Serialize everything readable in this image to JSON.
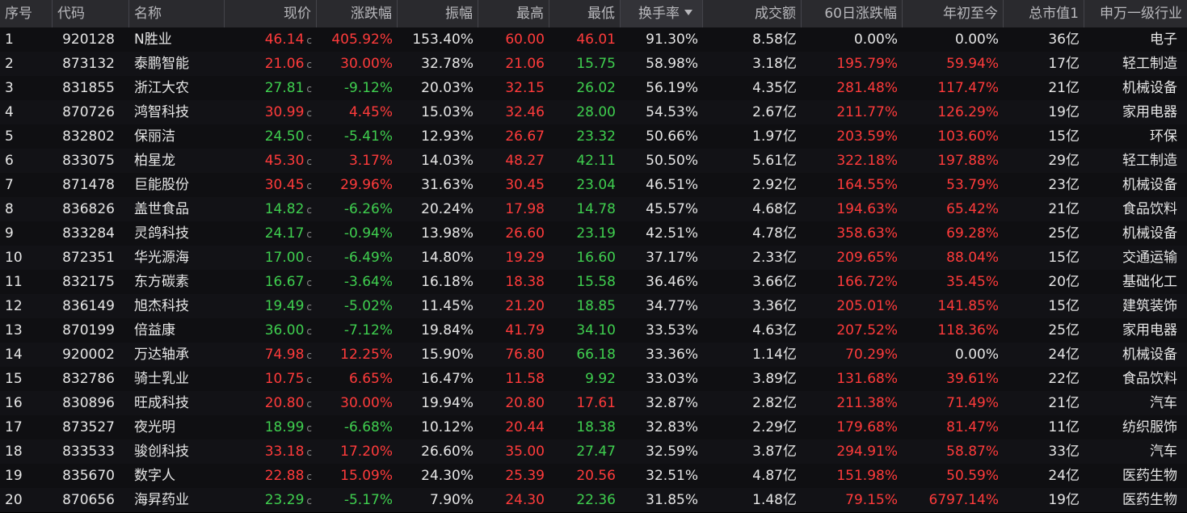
{
  "headers": {
    "idx": "序号",
    "code": "代码",
    "name": "名称",
    "price": "现价",
    "chg": "涨跌幅",
    "amp": "振幅",
    "high": "最高",
    "low": "最低",
    "turnover": "换手率",
    "volume": "成交额",
    "chg60": "60日涨跌幅",
    "ytd": "年初至今",
    "mktcap": "总市值1",
    "industry": "申万一级行业"
  },
  "sort_column": "turnover",
  "colors": {
    "up": "#ff3b3b",
    "down": "#3fcf4f",
    "flat": "#e6e6e6"
  },
  "price_flag": "c",
  "rows": [
    {
      "idx": "1",
      "code": "920128",
      "name": "N胜业",
      "price": "46.14",
      "chg": "405.92%",
      "amp": "153.40%",
      "high": "60.00",
      "low": "46.01",
      "turnover": "91.30%",
      "volume": "8.58亿",
      "chg60": "0.00%",
      "ytd": "0.00%",
      "mktcap": "36亿",
      "industry": "电子",
      "d": {
        "price": "up",
        "chg": "up",
        "high": "up",
        "low": "up",
        "chg60": "flat",
        "ytd": "flat"
      }
    },
    {
      "idx": "2",
      "code": "873132",
      "name": "泰鹏智能",
      "price": "21.06",
      "chg": "30.00%",
      "amp": "32.78%",
      "high": "21.06",
      "low": "15.75",
      "turnover": "58.98%",
      "volume": "3.18亿",
      "chg60": "195.79%",
      "ytd": "59.94%",
      "mktcap": "17亿",
      "industry": "轻工制造",
      "d": {
        "price": "up",
        "chg": "up",
        "high": "up",
        "low": "down",
        "chg60": "up",
        "ytd": "up"
      }
    },
    {
      "idx": "3",
      "code": "831855",
      "name": "浙江大农",
      "price": "27.81",
      "chg": "-9.12%",
      "amp": "20.03%",
      "high": "32.15",
      "low": "26.02",
      "turnover": "56.19%",
      "volume": "4.35亿",
      "chg60": "281.48%",
      "ytd": "117.47%",
      "mktcap": "21亿",
      "industry": "机械设备",
      "d": {
        "price": "down",
        "chg": "down",
        "high": "up",
        "low": "down",
        "chg60": "up",
        "ytd": "up"
      }
    },
    {
      "idx": "4",
      "code": "870726",
      "name": "鸿智科技",
      "price": "30.99",
      "chg": "4.45%",
      "amp": "15.03%",
      "high": "32.46",
      "low": "28.00",
      "turnover": "54.53%",
      "volume": "2.67亿",
      "chg60": "211.77%",
      "ytd": "126.29%",
      "mktcap": "19亿",
      "industry": "家用电器",
      "d": {
        "price": "up",
        "chg": "up",
        "high": "up",
        "low": "down",
        "chg60": "up",
        "ytd": "up"
      }
    },
    {
      "idx": "5",
      "code": "832802",
      "name": "保丽洁",
      "price": "24.50",
      "chg": "-5.41%",
      "amp": "12.93%",
      "high": "26.67",
      "low": "23.32",
      "turnover": "50.66%",
      "volume": "1.97亿",
      "chg60": "203.59%",
      "ytd": "103.60%",
      "mktcap": "15亿",
      "industry": "环保",
      "d": {
        "price": "down",
        "chg": "down",
        "high": "up",
        "low": "down",
        "chg60": "up",
        "ytd": "up"
      }
    },
    {
      "idx": "6",
      "code": "833075",
      "name": "柏星龙",
      "price": "45.30",
      "chg": "3.17%",
      "amp": "14.03%",
      "high": "48.27",
      "low": "42.11",
      "turnover": "50.50%",
      "volume": "5.61亿",
      "chg60": "322.18%",
      "ytd": "197.88%",
      "mktcap": "29亿",
      "industry": "轻工制造",
      "d": {
        "price": "up",
        "chg": "up",
        "high": "up",
        "low": "down",
        "chg60": "up",
        "ytd": "up"
      }
    },
    {
      "idx": "7",
      "code": "871478",
      "name": "巨能股份",
      "price": "30.45",
      "chg": "29.96%",
      "amp": "31.63%",
      "high": "30.45",
      "low": "23.04",
      "turnover": "46.51%",
      "volume": "2.92亿",
      "chg60": "164.55%",
      "ytd": "53.79%",
      "mktcap": "23亿",
      "industry": "机械设备",
      "d": {
        "price": "up",
        "chg": "up",
        "high": "up",
        "low": "down",
        "chg60": "up",
        "ytd": "up"
      }
    },
    {
      "idx": "8",
      "code": "836826",
      "name": "盖世食品",
      "price": "14.82",
      "chg": "-6.26%",
      "amp": "20.24%",
      "high": "17.98",
      "low": "14.78",
      "turnover": "45.57%",
      "volume": "4.68亿",
      "chg60": "194.63%",
      "ytd": "65.42%",
      "mktcap": "21亿",
      "industry": "食品饮料",
      "d": {
        "price": "down",
        "chg": "down",
        "high": "up",
        "low": "down",
        "chg60": "up",
        "ytd": "up"
      }
    },
    {
      "idx": "9",
      "code": "833284",
      "name": "灵鸽科技",
      "price": "24.17",
      "chg": "-0.94%",
      "amp": "13.98%",
      "high": "26.60",
      "low": "23.19",
      "turnover": "42.51%",
      "volume": "4.78亿",
      "chg60": "358.63%",
      "ytd": "69.28%",
      "mktcap": "25亿",
      "industry": "机械设备",
      "d": {
        "price": "down",
        "chg": "down",
        "high": "up",
        "low": "down",
        "chg60": "up",
        "ytd": "up"
      }
    },
    {
      "idx": "10",
      "code": "872351",
      "name": "华光源海",
      "price": "17.00",
      "chg": "-6.49%",
      "amp": "14.80%",
      "high": "19.29",
      "low": "16.60",
      "turnover": "37.17%",
      "volume": "2.33亿",
      "chg60": "209.65%",
      "ytd": "88.04%",
      "mktcap": "15亿",
      "industry": "交通运输",
      "d": {
        "price": "down",
        "chg": "down",
        "high": "up",
        "low": "down",
        "chg60": "up",
        "ytd": "up"
      }
    },
    {
      "idx": "11",
      "code": "832175",
      "name": "东方碳素",
      "price": "16.67",
      "chg": "-3.64%",
      "amp": "16.18%",
      "high": "18.38",
      "low": "15.58",
      "turnover": "36.46%",
      "volume": "3.66亿",
      "chg60": "166.72%",
      "ytd": "35.45%",
      "mktcap": "20亿",
      "industry": "基础化工",
      "d": {
        "price": "down",
        "chg": "down",
        "high": "up",
        "low": "down",
        "chg60": "up",
        "ytd": "up"
      }
    },
    {
      "idx": "12",
      "code": "836149",
      "name": "旭杰科技",
      "price": "19.49",
      "chg": "-5.02%",
      "amp": "11.45%",
      "high": "21.20",
      "low": "18.85",
      "turnover": "34.77%",
      "volume": "3.36亿",
      "chg60": "205.01%",
      "ytd": "141.85%",
      "mktcap": "15亿",
      "industry": "建筑装饰",
      "d": {
        "price": "down",
        "chg": "down",
        "high": "up",
        "low": "down",
        "chg60": "up",
        "ytd": "up"
      }
    },
    {
      "idx": "13",
      "code": "870199",
      "name": "倍益康",
      "price": "36.00",
      "chg": "-7.12%",
      "amp": "19.84%",
      "high": "41.79",
      "low": "34.10",
      "turnover": "33.53%",
      "volume": "4.63亿",
      "chg60": "207.52%",
      "ytd": "118.36%",
      "mktcap": "25亿",
      "industry": "家用电器",
      "d": {
        "price": "down",
        "chg": "down",
        "high": "up",
        "low": "down",
        "chg60": "up",
        "ytd": "up"
      }
    },
    {
      "idx": "14",
      "code": "920002",
      "name": "万达轴承",
      "price": "74.98",
      "chg": "12.25%",
      "amp": "15.90%",
      "high": "76.80",
      "low": "66.18",
      "turnover": "33.36%",
      "volume": "1.14亿",
      "chg60": "70.29%",
      "ytd": "0.00%",
      "mktcap": "24亿",
      "industry": "机械设备",
      "d": {
        "price": "up",
        "chg": "up",
        "high": "up",
        "low": "down",
        "chg60": "up",
        "ytd": "flat"
      }
    },
    {
      "idx": "15",
      "code": "832786",
      "name": "骑士乳业",
      "price": "10.75",
      "chg": "6.65%",
      "amp": "16.47%",
      "high": "11.58",
      "low": "9.92",
      "turnover": "33.03%",
      "volume": "3.89亿",
      "chg60": "131.68%",
      "ytd": "39.61%",
      "mktcap": "22亿",
      "industry": "食品饮料",
      "d": {
        "price": "up",
        "chg": "up",
        "high": "up",
        "low": "down",
        "chg60": "up",
        "ytd": "up"
      }
    },
    {
      "idx": "16",
      "code": "830896",
      "name": "旺成科技",
      "price": "20.80",
      "chg": "30.00%",
      "amp": "19.94%",
      "high": "20.80",
      "low": "17.61",
      "turnover": "32.87%",
      "volume": "2.82亿",
      "chg60": "211.38%",
      "ytd": "71.49%",
      "mktcap": "21亿",
      "industry": "汽车",
      "d": {
        "price": "up",
        "chg": "up",
        "high": "up",
        "low": "up",
        "chg60": "up",
        "ytd": "up"
      }
    },
    {
      "idx": "17",
      "code": "873527",
      "name": "夜光明",
      "price": "18.99",
      "chg": "-6.68%",
      "amp": "10.12%",
      "high": "20.44",
      "low": "18.38",
      "turnover": "32.83%",
      "volume": "2.29亿",
      "chg60": "179.68%",
      "ytd": "81.47%",
      "mktcap": "11亿",
      "industry": "纺织服饰",
      "d": {
        "price": "down",
        "chg": "down",
        "high": "up",
        "low": "down",
        "chg60": "up",
        "ytd": "up"
      }
    },
    {
      "idx": "18",
      "code": "833533",
      "name": "骏创科技",
      "price": "33.18",
      "chg": "17.20%",
      "amp": "26.60%",
      "high": "35.00",
      "low": "27.47",
      "turnover": "32.59%",
      "volume": "3.87亿",
      "chg60": "294.91%",
      "ytd": "58.87%",
      "mktcap": "33亿",
      "industry": "汽车",
      "d": {
        "price": "up",
        "chg": "up",
        "high": "up",
        "low": "down",
        "chg60": "up",
        "ytd": "up"
      }
    },
    {
      "idx": "19",
      "code": "835670",
      "name": "数字人",
      "price": "22.88",
      "chg": "15.09%",
      "amp": "24.30%",
      "high": "25.39",
      "low": "20.56",
      "turnover": "32.51%",
      "volume": "4.87亿",
      "chg60": "151.98%",
      "ytd": "50.59%",
      "mktcap": "24亿",
      "industry": "医药生物",
      "d": {
        "price": "up",
        "chg": "up",
        "high": "up",
        "low": "up",
        "chg60": "up",
        "ytd": "up"
      }
    },
    {
      "idx": "20",
      "code": "870656",
      "name": "海昇药业",
      "price": "23.29",
      "chg": "-5.17%",
      "amp": "7.90%",
      "high": "24.30",
      "low": "22.36",
      "turnover": "31.85%",
      "volume": "1.48亿",
      "chg60": "79.15%",
      "ytd": "6797.14%",
      "mktcap": "19亿",
      "industry": "医药生物",
      "d": {
        "price": "down",
        "chg": "down",
        "high": "up",
        "low": "down",
        "chg60": "up",
        "ytd": "up"
      }
    }
  ]
}
